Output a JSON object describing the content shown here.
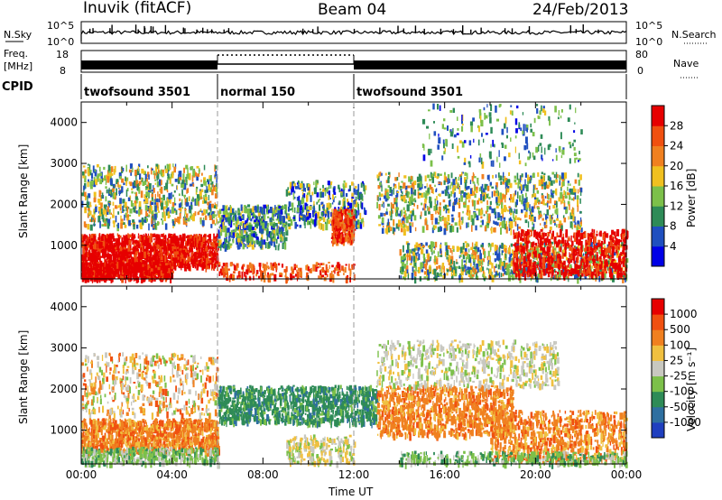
{
  "header": {
    "site": "Inuvik (fitACF)",
    "beam": "Beam 04",
    "date": "24/Feb/2013"
  },
  "noise_panel": {
    "left_label": "N.Sky",
    "left_ticks": [
      "10^5",
      "10^0"
    ],
    "right_label": "N.Search",
    "right_ticks": [
      "10^5",
      "10^0"
    ]
  },
  "freq_panel": {
    "left_label_line1": "Freq.",
    "left_label_line2": "[MHz]",
    "left_ticks": [
      "18",
      "8"
    ],
    "right_label": "Nave",
    "right_ticks": [
      "80",
      "0"
    ]
  },
  "cpid": {
    "label": "CPID",
    "segments": [
      {
        "name": "twofsound 3501",
        "start_hour": 0,
        "end_hour": 6
      },
      {
        "name": "normal 150",
        "start_hour": 6,
        "end_hour": 12
      },
      {
        "name": "twofsound 3501",
        "start_hour": 12,
        "end_hour": 24
      }
    ]
  },
  "chart_data": [
    {
      "type": "heatmap",
      "title": "",
      "xlabel": "",
      "ylabel": "Slant Range [km]",
      "xlim": [
        0,
        24
      ],
      "ylim": [
        180,
        4500
      ],
      "yticks": [
        "1000",
        "2000",
        "3000",
        "4000"
      ],
      "colorbar": {
        "label": "Power [dB]",
        "ticks": [
          "4",
          "8",
          "12",
          "16",
          "20",
          "24",
          "28"
        ],
        "colors": [
          "#0000e6",
          "#1f4fbf",
          "#2e8b57",
          "#7cc04a",
          "#f0c020",
          "#f08020",
          "#f05010",
          "#e60000"
        ]
      }
    },
    {
      "type": "heatmap",
      "title": "",
      "xlabel": "Time UT",
      "ylabel": "Slant Range [km]",
      "xlim": [
        0,
        24
      ],
      "ylim": [
        180,
        4500
      ],
      "xticks": [
        "00:00",
        "04:00",
        "08:00",
        "12:00",
        "16:00",
        "20:00",
        "00:00"
      ],
      "yticks": [
        "1000",
        "2000",
        "3000",
        "4000"
      ],
      "colorbar": {
        "label": "Velocity [m s⁻¹]",
        "ticks": [
          "1000",
          "500",
          "100",
          "25",
          "-25",
          "-100",
          "-500",
          "-1000"
        ],
        "colors": [
          "#1f3fbf",
          "#2e6fa0",
          "#2e8b57",
          "#7cc04a",
          "#c8c8c0",
          "#f0c040",
          "#f08020",
          "#f05010",
          "#e60000"
        ]
      }
    }
  ]
}
